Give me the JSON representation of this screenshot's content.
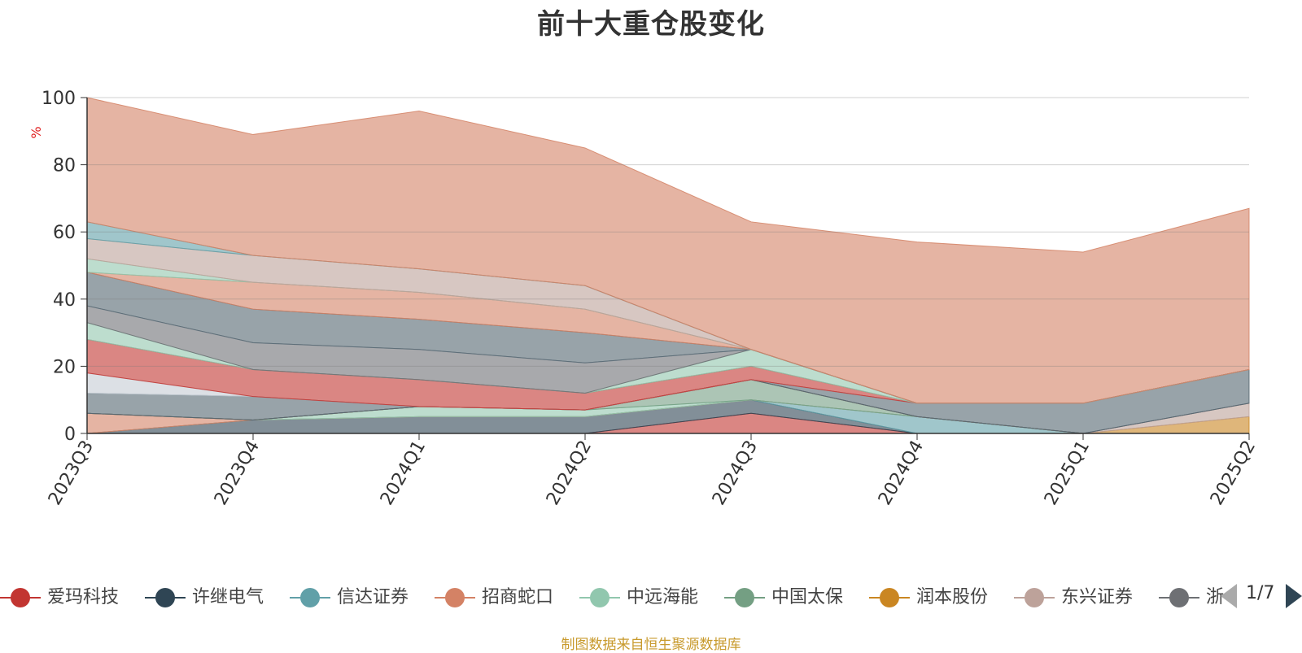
{
  "chart_data": {
    "type": "area",
    "title": "前十大重仓股变化",
    "ylabel": "%",
    "ylim": [
      0,
      100
    ],
    "yticks": [
      0,
      20,
      40,
      60,
      80,
      100
    ],
    "categories": [
      "2023Q3",
      "2023Q4",
      "2024Q1",
      "2024Q2",
      "2024Q3",
      "2024Q4",
      "2025Q1",
      "2025Q2"
    ],
    "grid": true,
    "stacked": true,
    "series": [
      {
        "name": "爱玛科技",
        "color": "#c23531",
        "values": [
          0,
          0,
          0,
          0,
          6,
          0,
          0,
          0
        ]
      },
      {
        "name": "许继电气",
        "color": "#2f4554",
        "values": [
          0,
          4,
          5,
          5,
          4,
          0,
          0,
          0
        ]
      },
      {
        "name": "信达证券",
        "color": "#61a0a8",
        "values": [
          0,
          0,
          0,
          0,
          0,
          5,
          0,
          0
        ]
      },
      {
        "name": "招商蛇口",
        "color": "#d48265",
        "values": [
          6,
          0,
          0,
          0,
          0,
          0,
          0,
          0
        ]
      },
      {
        "name": "中远海能",
        "color": "#91c7ae",
        "values": [
          0,
          0,
          3,
          2,
          0,
          0,
          0,
          0
        ]
      },
      {
        "name": "中国太保",
        "color": "#749f83",
        "values": [
          0,
          0,
          0,
          0,
          6,
          0,
          0,
          0
        ]
      },
      {
        "name": "润本股份",
        "color": "#ca8622",
        "values": [
          0,
          0,
          0,
          0,
          0,
          0,
          0,
          5
        ]
      },
      {
        "name": "东兴证券",
        "color": "#bda29a",
        "values": [
          0,
          0,
          0,
          0,
          0,
          0,
          0,
          4
        ]
      },
      {
        "name": "浙商证券",
        "color": "#6e7074",
        "values": [
          0,
          0,
          0,
          0,
          0,
          0,
          0,
          0
        ]
      },
      {
        "name": "",
        "color": "#546570",
        "values": [
          6,
          7,
          0,
          0,
          0,
          4,
          9,
          10
        ]
      },
      {
        "name": "",
        "color": "#c4ccd3",
        "values": [
          6,
          0,
          0,
          0,
          0,
          0,
          0,
          0
        ]
      },
      {
        "name": "",
        "color": "#c23531",
        "values": [
          10,
          8,
          8,
          5,
          4,
          0,
          0,
          0
        ]
      },
      {
        "name": "",
        "color": "#91c7ae",
        "values": [
          5,
          0,
          0,
          0,
          5,
          0,
          0,
          0
        ]
      },
      {
        "name": "",
        "color": "#6e7074",
        "values": [
          5,
          8,
          9,
          9,
          0,
          0,
          0,
          0
        ]
      },
      {
        "name": "",
        "color": "#c4ccd3",
        "values": [
          0,
          0,
          0,
          0,
          0,
          0,
          0,
          0
        ]
      },
      {
        "name": "",
        "color": "#546570",
        "values": [
          10,
          10,
          9,
          9,
          0,
          0,
          0,
          0
        ]
      },
      {
        "name": "",
        "color": "#d48265",
        "values": [
          0,
          8,
          8,
          7,
          0,
          0,
          0,
          0
        ]
      },
      {
        "name": "",
        "color": "#91c7ae",
        "values": [
          4,
          0,
          0,
          0,
          0,
          0,
          0,
          0
        ]
      },
      {
        "name": "",
        "color": "#bda29a",
        "values": [
          6,
          8,
          7,
          7,
          0,
          0,
          0,
          0
        ]
      },
      {
        "name": "",
        "color": "#61a0a8",
        "values": [
          5,
          0,
          0,
          0,
          0,
          0,
          0,
          0
        ]
      },
      {
        "name": "",
        "color": "#d48265",
        "values": [
          37,
          36,
          47,
          41,
          38,
          48,
          45,
          48
        ]
      }
    ]
  },
  "legend": {
    "items": [
      {
        "name": "爱玛科技",
        "color": "#c23531"
      },
      {
        "name": "许继电气",
        "color": "#2f4554"
      },
      {
        "name": "信达证券",
        "color": "#61a0a8"
      },
      {
        "name": "招商蛇口",
        "color": "#d48265"
      },
      {
        "name": "中远海能",
        "color": "#91c7ae"
      },
      {
        "name": "中国太保",
        "color": "#749f83"
      },
      {
        "name": "润本股份",
        "color": "#ca8622"
      },
      {
        "name": "东兴证券",
        "color": "#bda29a"
      },
      {
        "name": "浙",
        "color": "#6e7074"
      }
    ],
    "page": "1/7"
  },
  "footer": {
    "source": "制图数据来自恒生聚源数据库"
  }
}
